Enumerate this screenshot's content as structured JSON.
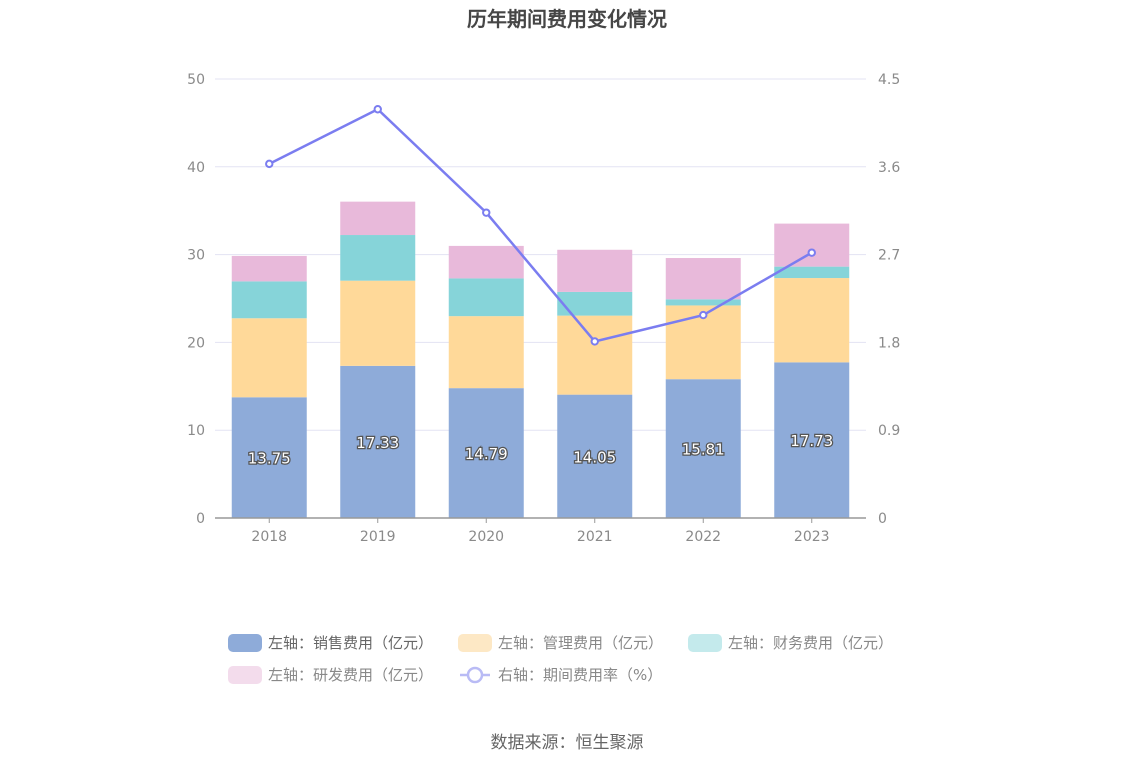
{
  "chart_data": {
    "type": "bar",
    "title": "历年期间费用变化情况",
    "categories": [
      "2018",
      "2019",
      "2020",
      "2021",
      "2022",
      "2023"
    ],
    "stacked": true,
    "y_left": {
      "min": 0,
      "max": 50,
      "ticks": [
        "0",
        "10",
        "20",
        "30",
        "40",
        "50"
      ]
    },
    "y_right": {
      "min": 0,
      "max": 4.5,
      "ticks": [
        "0",
        "0.9",
        "1.8",
        "2.7",
        "3.6",
        "4.5"
      ]
    },
    "series": [
      {
        "name": "左轴：销售费用（亿元）",
        "type": "bar",
        "axis": "left",
        "color": "#8eabd9",
        "legend_color": "#8eabd9",
        "values": [
          13.75,
          17.33,
          14.79,
          14.05,
          15.81,
          17.73
        ],
        "show_labels": true
      },
      {
        "name": "左轴：管理费用（亿元）",
        "type": "bar",
        "axis": "left",
        "color": "#ffd999",
        "legend_color": "#fde8c5",
        "values": [
          9.0,
          9.7,
          8.2,
          9.0,
          8.4,
          9.6
        ]
      },
      {
        "name": "左轴：财务费用（亿元）",
        "type": "bar",
        "axis": "left",
        "color": "#86d4d9",
        "legend_color": "#c4eaec",
        "values": [
          4.2,
          5.2,
          4.3,
          2.7,
          0.7,
          1.3
        ]
      },
      {
        "name": "左轴：研发费用（亿元）",
        "type": "bar",
        "axis": "left",
        "color": "#e8b9da",
        "legend_color": "#f3dcec",
        "values": [
          2.9,
          3.8,
          3.7,
          4.8,
          4.7,
          4.9
        ]
      },
      {
        "name": "右轴：期间费用率（%）",
        "type": "line",
        "axis": "right",
        "color": "#7b7df0",
        "legend_color": "#b9bbf5",
        "values": [
          3.63,
          4.19,
          3.13,
          1.81,
          2.08,
          2.72
        ]
      }
    ],
    "grid": true,
    "legend_position": "bottom"
  },
  "footer": {
    "source": "数据来源：恒生聚源"
  }
}
